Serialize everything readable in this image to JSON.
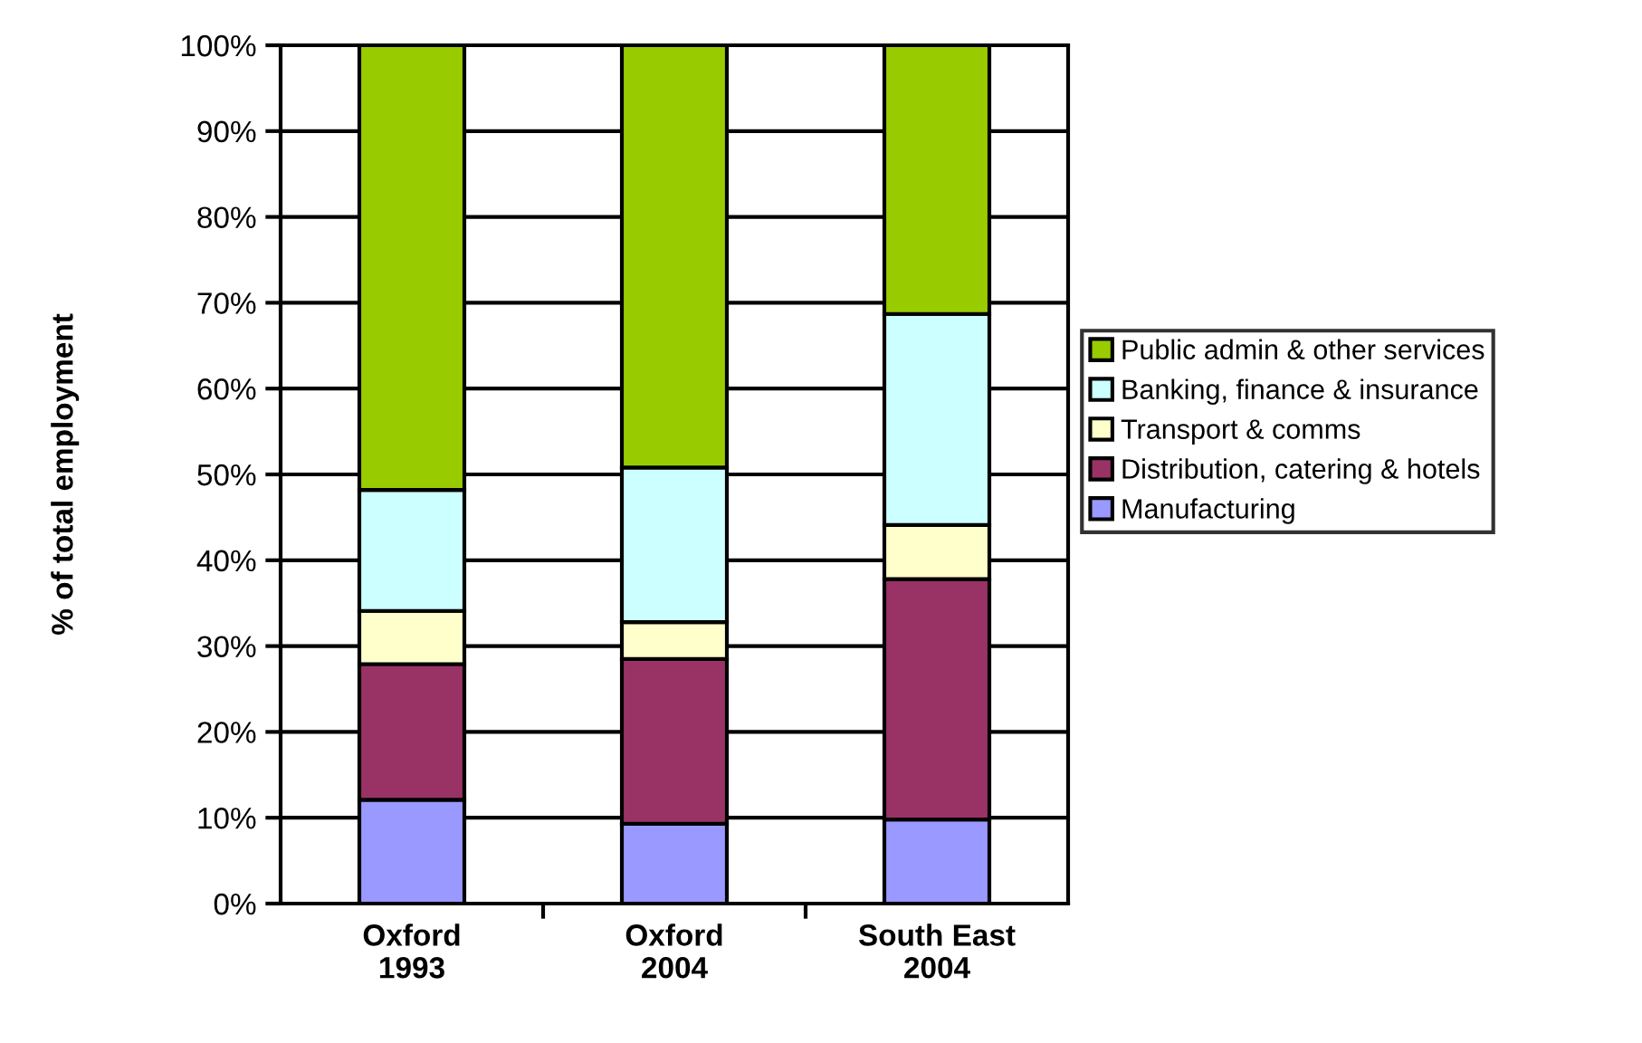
{
  "chart_data": {
    "type": "bar",
    "stacked": true,
    "ylabel": "% of total employment",
    "categories": [
      "Oxford\n1993",
      "Oxford\n2004",
      "South East\n2004"
    ],
    "series": [
      {
        "name": "Manufacturing",
        "color": "#9999ff",
        "values": [
          12.1,
          9.3,
          9.8
        ]
      },
      {
        "name": "Distribution, catering & hotels",
        "color": "#993366",
        "values": [
          15.8,
          19.2,
          28.0
        ]
      },
      {
        "name": "Transport & comms",
        "color": "#ffffcc",
        "values": [
          6.2,
          4.3,
          6.3
        ]
      },
      {
        "name": "Banking, finance & insurance",
        "color": "#ccffff",
        "values": [
          14.1,
          18.0,
          24.6
        ]
      },
      {
        "name": "Public admin & other services",
        "color": "#99cc00",
        "values": [
          51.8,
          49.2,
          31.3
        ]
      }
    ],
    "ylim": [
      0,
      100
    ],
    "yticks": [
      {
        "value": 0,
        "label": "0%"
      },
      {
        "value": 10,
        "label": "10%"
      },
      {
        "value": 20,
        "label": "20%"
      },
      {
        "value": 30,
        "label": "30%"
      },
      {
        "value": 40,
        "label": "40%"
      },
      {
        "value": 50,
        "label": "50%"
      },
      {
        "value": 60,
        "label": "60%"
      },
      {
        "value": 70,
        "label": "70%"
      },
      {
        "value": 80,
        "label": "80%"
      },
      {
        "value": 90,
        "label": "90%"
      },
      {
        "value": 100,
        "label": "100%"
      }
    ],
    "grid": "y",
    "legend": "right"
  }
}
